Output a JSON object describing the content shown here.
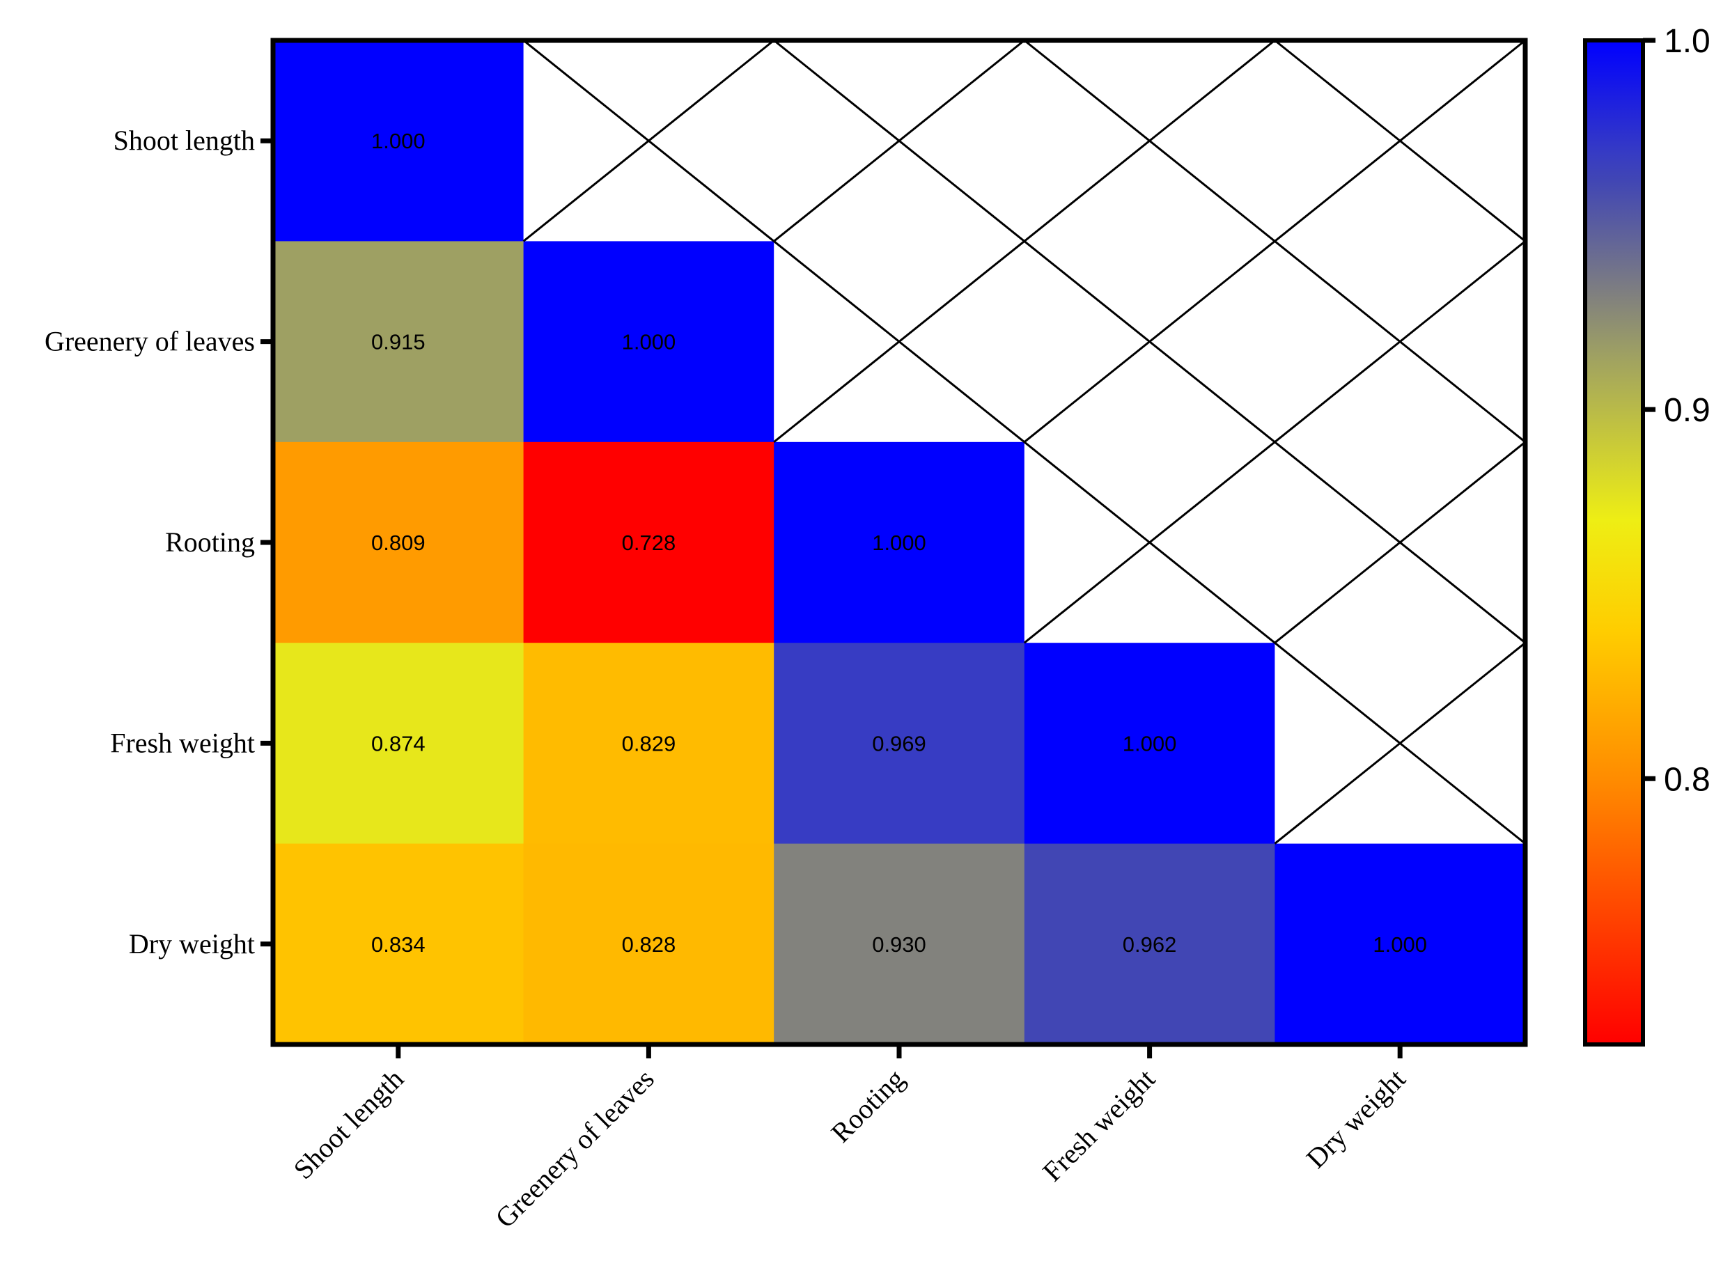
{
  "colors": {
    "scale": [
      "#ff0000",
      "#ff8c00",
      "#ffd000",
      "#ffff00",
      "#9ea063",
      "#0000ff"
    ],
    "empty_cell": "#ffffff",
    "frame": "#000000"
  },
  "chart_data": {
    "type": "heatmap",
    "title": "",
    "xlabel": "",
    "ylabel": "",
    "rows": [
      "Shoot length",
      "Greenery of leaves",
      "Rooting",
      "Fresh weight",
      "Dry weight"
    ],
    "columns": [
      "Shoot length",
      "Greenery of leaves",
      "Rooting",
      "Fresh weight",
      "Dry weight"
    ],
    "values": [
      [
        1.0,
        null,
        null,
        null,
        null
      ],
      [
        0.915,
        1.0,
        null,
        null,
        null
      ],
      [
        0.809,
        0.728,
        1.0,
        null,
        null
      ],
      [
        0.874,
        0.829,
        0.969,
        1.0,
        null
      ],
      [
        0.834,
        0.828,
        0.93,
        0.962,
        1.0
      ]
    ],
    "value_labels": [
      [
        "1.000",
        "",
        "",
        "",
        ""
      ],
      [
        "0.915",
        "1.000",
        "",
        "",
        ""
      ],
      [
        "0.809",
        "0.728",
        "1.000",
        "",
        ""
      ],
      [
        "0.874",
        "0.829",
        "0.969",
        "1.000",
        ""
      ],
      [
        "0.834",
        "0.828",
        "0.930",
        "0.962",
        "1.000"
      ]
    ],
    "empty_cells_marked": "X",
    "colorbar": {
      "min": 0.728,
      "max": 1.0,
      "ticks": [
        0.8,
        0.9,
        1.0
      ],
      "tick_labels": [
        "0.8",
        "0.9",
        "1.0"
      ],
      "placement": "right"
    }
  }
}
